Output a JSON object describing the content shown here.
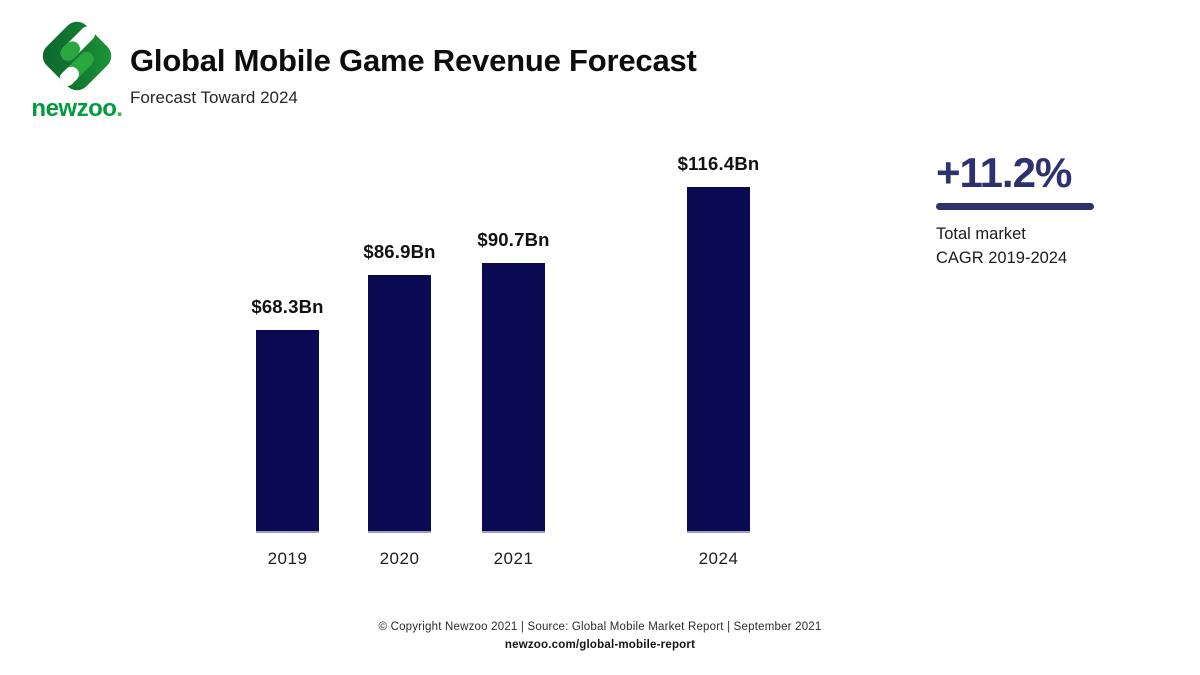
{
  "logo": {
    "wordmark": "newzoo",
    "wordmark_dot": ".",
    "colors": {
      "diamond_dark": "#0b662b",
      "diamond_bright": "#1d9a39",
      "capsule_green": "#2aa73f",
      "wordmark_green": "#009c3d"
    }
  },
  "header": {
    "title": "Global Mobile Game Revenue Forecast",
    "subtitle": "Forecast Toward 2024"
  },
  "chart_data": {
    "type": "bar",
    "title": "Global Mobile Game Revenue Forecast",
    "subtitle": "Forecast Toward 2024",
    "categories": [
      "2019",
      "2020",
      "2021",
      "2024"
    ],
    "values": [
      68.3,
      86.9,
      90.7,
      116.4
    ],
    "value_labels": [
      "$68.3Bn",
      "$86.9Bn",
      "$90.7Bn",
      "$116.4Bn"
    ],
    "ylim": [
      0,
      120
    ],
    "xlabel": "",
    "ylabel": "",
    "grid": false,
    "legend": false,
    "bar_color": "#0a0a52",
    "annotation": {
      "value": "+11.2%",
      "label": "Total market CAGR 2019-2024"
    }
  },
  "stat": {
    "value": "+11.2%",
    "caption_line1": "Total market",
    "caption_line2": "CAGR 2019-2024",
    "color": "#2c326e"
  },
  "footer": {
    "line1": "© Copyright Newzoo 2021 | Source: Global Mobile Market Report | September 2021",
    "line2": "newzoo.com/global-mobile-report"
  }
}
